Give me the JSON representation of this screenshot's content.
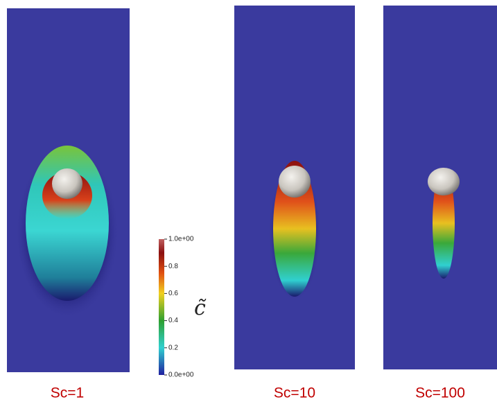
{
  "panels": [
    {
      "label": "Sc=1"
    },
    {
      "label": "Sc=10"
    },
    {
      "label": "Sc=100"
    }
  ],
  "colorbar": {
    "label": "c̃",
    "ylim": [
      0,
      1
    ],
    "ticks": [
      {
        "value": 0,
        "label": "0.0e+00"
      },
      0.2,
      0.4,
      0.6,
      0.8,
      {
        "value": 1,
        "label": "1.0e+00"
      }
    ]
  }
}
